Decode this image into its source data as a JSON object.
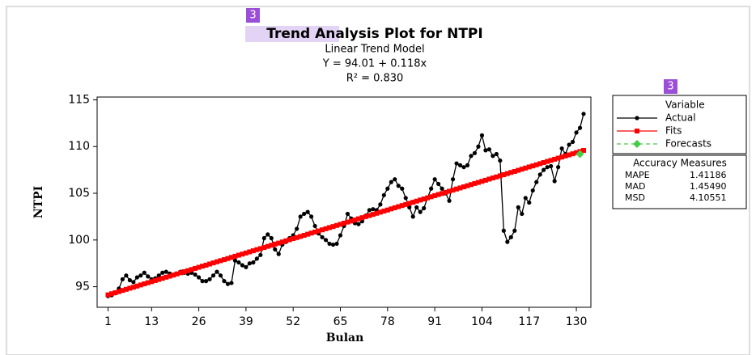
{
  "chart_data": {
    "type": "line",
    "title": "Trend Analysis Plot for NTPI",
    "subtitles": [
      "Linear Trend Model",
      "Y = 94.01 + 0.118x",
      "R² = 0.830"
    ],
    "x_label": "Bulan",
    "y_label": "NTPI",
    "legend_title": "Variable",
    "badges": [
      "3",
      "3"
    ],
    "x": [
      1,
      2,
      3,
      4,
      5,
      6,
      7,
      8,
      9,
      10,
      11,
      12,
      13,
      14,
      15,
      16,
      17,
      18,
      19,
      20,
      21,
      22,
      23,
      24,
      25,
      26,
      27,
      28,
      29,
      30,
      31,
      32,
      33,
      34,
      35,
      36,
      37,
      38,
      39,
      40,
      41,
      42,
      43,
      44,
      45,
      46,
      47,
      48,
      49,
      50,
      51,
      52,
      53,
      54,
      55,
      56,
      57,
      58,
      59,
      60,
      61,
      62,
      63,
      64,
      65,
      66,
      67,
      68,
      69,
      70,
      71,
      72,
      73,
      74,
      75,
      76,
      77,
      78,
      79,
      80,
      81,
      82,
      83,
      84,
      85,
      86,
      87,
      88,
      89,
      90,
      91,
      92,
      93,
      94,
      95,
      96,
      97,
      98,
      99,
      100,
      101,
      102,
      103,
      104,
      105,
      106,
      107,
      108,
      109,
      110,
      111,
      112,
      113,
      114,
      115,
      116,
      117,
      118,
      119,
      120,
      121,
      122,
      123,
      124,
      125,
      126,
      127,
      128,
      129,
      130,
      131,
      132
    ],
    "series": [
      {
        "name": "Actual",
        "color": "#000000",
        "marker": "circle",
        "values": [
          94.0,
          94.1,
          94.3,
          94.8,
          95.8,
          96.2,
          95.7,
          95.5,
          96.0,
          96.2,
          96.5,
          96.1,
          95.8,
          95.9,
          96.2,
          96.5,
          96.6,
          96.4,
          96.3,
          96.4,
          96.6,
          96.5,
          96.4,
          96.5,
          96.3,
          96.0,
          95.6,
          95.6,
          95.8,
          96.2,
          96.6,
          96.2,
          95.6,
          95.3,
          95.4,
          97.8,
          97.6,
          97.3,
          97.1,
          97.5,
          97.6,
          98.0,
          98.4,
          100.2,
          100.6,
          100.2,
          99.0,
          98.5,
          99.5,
          99.8,
          100.2,
          100.5,
          101.2,
          102.5,
          102.8,
          103.0,
          102.5,
          101.5,
          100.7,
          100.3,
          100.0,
          99.6,
          99.5,
          99.6,
          100.5,
          101.5,
          102.8,
          102.3,
          101.8,
          101.7,
          102.0,
          102.6,
          103.2,
          103.3,
          103.2,
          103.8,
          104.8,
          105.5,
          106.2,
          106.5,
          105.8,
          105.5,
          104.5,
          103.5,
          102.5,
          103.5,
          103.0,
          103.4,
          104.5,
          105.5,
          106.5,
          106.0,
          105.5,
          105.0,
          104.2,
          106.5,
          108.2,
          108.0,
          107.8,
          108.0,
          109.0,
          109.3,
          110.0,
          111.2,
          109.6,
          109.7,
          109.0,
          109.2,
          108.5,
          101.0,
          99.8,
          100.3,
          101.0,
          103.5,
          102.8,
          104.5,
          104.0,
          105.3,
          106.2,
          107.0,
          107.5,
          107.8,
          107.9,
          106.3,
          107.8,
          109.8,
          109.2,
          110.2,
          110.5,
          111.5,
          112.0,
          113.5
        ]
      },
      {
        "name": "Fits",
        "color": "#ff0000",
        "marker": "square",
        "values": [
          94.13,
          94.25,
          94.36,
          94.48,
          94.6,
          94.72,
          94.84,
          94.95,
          95.07,
          95.19,
          95.31,
          95.43,
          95.54,
          95.66,
          95.78,
          95.9,
          96.02,
          96.13,
          96.25,
          96.37,
          96.49,
          96.61,
          96.72,
          96.84,
          96.96,
          97.08,
          97.2,
          97.31,
          97.43,
          97.55,
          97.67,
          97.79,
          97.9,
          98.02,
          98.14,
          98.26,
          98.38,
          98.49,
          98.61,
          98.73,
          98.85,
          98.97,
          99.08,
          99.2,
          99.32,
          99.44,
          99.56,
          99.67,
          99.79,
          99.91,
          100.03,
          100.15,
          100.26,
          100.38,
          100.5,
          100.62,
          100.74,
          100.85,
          100.97,
          101.09,
          101.21,
          101.33,
          101.44,
          101.56,
          101.68,
          101.8,
          101.92,
          102.03,
          102.15,
          102.27,
          102.39,
          102.51,
          102.62,
          102.74,
          102.86,
          102.98,
          103.1,
          103.21,
          103.33,
          103.45,
          103.57,
          103.69,
          103.8,
          103.92,
          104.04,
          104.16,
          104.28,
          104.39,
          104.51,
          104.63,
          104.75,
          104.87,
          104.98,
          105.1,
          105.22,
          105.34,
          105.46,
          105.57,
          105.69,
          105.81,
          105.93,
          106.05,
          106.16,
          106.28,
          106.4,
          106.52,
          106.64,
          106.75,
          106.87,
          106.99,
          107.11,
          107.23,
          107.34,
          107.46,
          107.58,
          107.7,
          107.82,
          107.93,
          108.05,
          108.17,
          108.29,
          108.41,
          108.52,
          108.64,
          108.76,
          108.88,
          109.0,
          109.11,
          109.23,
          109.35,
          109.47,
          109.59
        ]
      },
      {
        "name": "Forecasts",
        "color": "#44cc44",
        "marker": "diamond",
        "x": [
          131
        ],
        "values": [
          109.2
        ]
      }
    ],
    "xlim": [
      -2,
      134
    ],
    "ylim": [
      92.8,
      115.3
    ],
    "xticks": [
      1,
      13,
      26,
      39,
      52,
      65,
      78,
      91,
      104,
      117,
      130
    ],
    "yticks": [
      95,
      100,
      105,
      110,
      115
    ],
    "accuracy": {
      "title": "Accuracy Measures",
      "rows": [
        [
          "MAPE",
          "1.41186"
        ],
        [
          "MAD",
          "1.45490"
        ],
        [
          "MSD",
          "4.10551"
        ]
      ]
    }
  }
}
